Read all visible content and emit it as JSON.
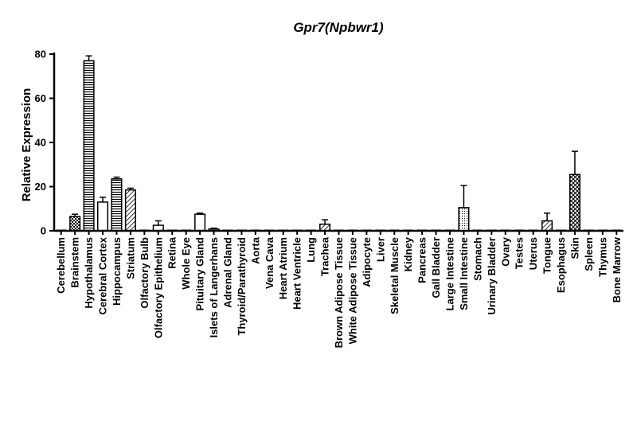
{
  "chart_data": {
    "type": "bar",
    "title": "Gpr7(Npbwr1)",
    "xlabel": "",
    "ylabel": "Relative Expression",
    "ylim": [
      0,
      80
    ],
    "yticks": [
      "0",
      "20",
      "40",
      "60",
      "80"
    ],
    "grid": false,
    "legend": "none",
    "categories": [
      "Cerebellum",
      "Brainstem",
      "Hypothalamus",
      "Cerebral Cortex",
      "Hippocampus",
      "Striatum",
      "Olfactory Bulb",
      "Olfactory Epithelium",
      "Retina",
      "Whole Eye",
      "Pituitary Gland",
      "Islets of Langerhans",
      "Adrenal Gland",
      "Thyroid/Parathyroid",
      "Aorta",
      "Vena Cava",
      "Heart Atrium",
      "Heart Ventricle",
      "Lung",
      "Trachea",
      "Brown Adipose Tissue",
      "White Adipose Tissue",
      "Adipocyte",
      "Liver",
      "Skeletal Muscle",
      "Kidney",
      "Pancreas",
      "Gall Bladder",
      "Large Intestine",
      "Small Intestine",
      "Stomach",
      "Urinary Bladder",
      "Ovary",
      "Testes",
      "Uterus",
      "Tongue",
      "Esophagus",
      "Skin",
      "Spleen",
      "Thymus",
      "Bone Marrow"
    ],
    "values": [
      0,
      6.5,
      77,
      13,
      23.5,
      18.5,
      0,
      2.5,
      0,
      0,
      7.5,
      0.8,
      0,
      0,
      0,
      0,
      0,
      0,
      0,
      3,
      0,
      0,
      0,
      0,
      0,
      0,
      0,
      0,
      0,
      10.5,
      0,
      0,
      0,
      0,
      0,
      4.5,
      0,
      25.5,
      0,
      0,
      0
    ],
    "errors": [
      0,
      1,
      2.2,
      2.2,
      0.8,
      0.8,
      0,
      2,
      0,
      0,
      0.5,
      0.4,
      0,
      0,
      0,
      0,
      0,
      0,
      0,
      2,
      0,
      0,
      0,
      0,
      0,
      0,
      0,
      0,
      0,
      10,
      0,
      0,
      0,
      0,
      0,
      3.5,
      0,
      10.5,
      0,
      0,
      0
    ],
    "patterns": [
      "none",
      "checker",
      "hlines",
      "white",
      "hlines",
      "diag",
      "none",
      "white",
      "none",
      "none",
      "white",
      "none",
      "none",
      "none",
      "none",
      "none",
      "none",
      "none",
      "none",
      "diag",
      "none",
      "none",
      "none",
      "none",
      "none",
      "none",
      "none",
      "none",
      "none",
      "dots",
      "none",
      "none",
      "none",
      "none",
      "none",
      "diag",
      "none",
      "cross",
      "none",
      "none",
      "none"
    ]
  }
}
